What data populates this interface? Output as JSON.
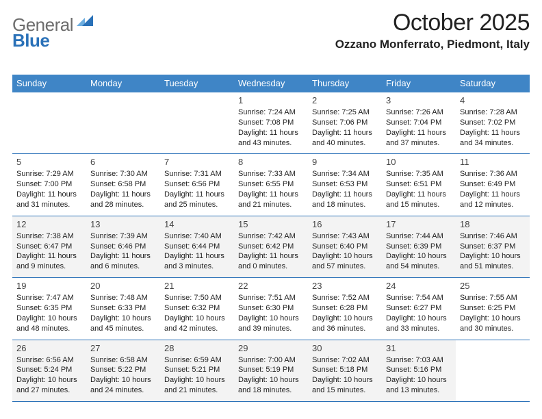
{
  "brand": {
    "gray": "General",
    "blue": "Blue"
  },
  "logo_colors": {
    "light": "#6daee0",
    "dark": "#2a71b8"
  },
  "header_color": "#3f85c6",
  "border_color": "#2a71b8",
  "title": "October 2025",
  "location": "Ozzano Monferrato, Piedmont, Italy",
  "weekdays": [
    "Sunday",
    "Monday",
    "Tuesday",
    "Wednesday",
    "Thursday",
    "Friday",
    "Saturday"
  ],
  "weeks": [
    [
      null,
      null,
      null,
      {
        "d": "1",
        "r": "7:24 AM",
        "s": "7:08 PM",
        "h": "11",
        "m": "43"
      },
      {
        "d": "2",
        "r": "7:25 AM",
        "s": "7:06 PM",
        "h": "11",
        "m": "40"
      },
      {
        "d": "3",
        "r": "7:26 AM",
        "s": "7:04 PM",
        "h": "11",
        "m": "37"
      },
      {
        "d": "4",
        "r": "7:28 AM",
        "s": "7:02 PM",
        "h": "11",
        "m": "34"
      }
    ],
    [
      {
        "d": "5",
        "r": "7:29 AM",
        "s": "7:00 PM",
        "h": "11",
        "m": "31"
      },
      {
        "d": "6",
        "r": "7:30 AM",
        "s": "6:58 PM",
        "h": "11",
        "m": "28"
      },
      {
        "d": "7",
        "r": "7:31 AM",
        "s": "6:56 PM",
        "h": "11",
        "m": "25"
      },
      {
        "d": "8",
        "r": "7:33 AM",
        "s": "6:55 PM",
        "h": "11",
        "m": "21"
      },
      {
        "d": "9",
        "r": "7:34 AM",
        "s": "6:53 PM",
        "h": "11",
        "m": "18"
      },
      {
        "d": "10",
        "r": "7:35 AM",
        "s": "6:51 PM",
        "h": "11",
        "m": "15"
      },
      {
        "d": "11",
        "r": "7:36 AM",
        "s": "6:49 PM",
        "h": "11",
        "m": "12"
      }
    ],
    [
      {
        "d": "12",
        "r": "7:38 AM",
        "s": "6:47 PM",
        "h": "11",
        "m": "9"
      },
      {
        "d": "13",
        "r": "7:39 AM",
        "s": "6:46 PM",
        "h": "11",
        "m": "6"
      },
      {
        "d": "14",
        "r": "7:40 AM",
        "s": "6:44 PM",
        "h": "11",
        "m": "3"
      },
      {
        "d": "15",
        "r": "7:42 AM",
        "s": "6:42 PM",
        "h": "11",
        "m": "0"
      },
      {
        "d": "16",
        "r": "7:43 AM",
        "s": "6:40 PM",
        "h": "10",
        "m": "57"
      },
      {
        "d": "17",
        "r": "7:44 AM",
        "s": "6:39 PM",
        "h": "10",
        "m": "54"
      },
      {
        "d": "18",
        "r": "7:46 AM",
        "s": "6:37 PM",
        "h": "10",
        "m": "51"
      }
    ],
    [
      {
        "d": "19",
        "r": "7:47 AM",
        "s": "6:35 PM",
        "h": "10",
        "m": "48"
      },
      {
        "d": "20",
        "r": "7:48 AM",
        "s": "6:33 PM",
        "h": "10",
        "m": "45"
      },
      {
        "d": "21",
        "r": "7:50 AM",
        "s": "6:32 PM",
        "h": "10",
        "m": "42"
      },
      {
        "d": "22",
        "r": "7:51 AM",
        "s": "6:30 PM",
        "h": "10",
        "m": "39"
      },
      {
        "d": "23",
        "r": "7:52 AM",
        "s": "6:28 PM",
        "h": "10",
        "m": "36"
      },
      {
        "d": "24",
        "r": "7:54 AM",
        "s": "6:27 PM",
        "h": "10",
        "m": "33"
      },
      {
        "d": "25",
        "r": "7:55 AM",
        "s": "6:25 PM",
        "h": "10",
        "m": "30"
      }
    ],
    [
      {
        "d": "26",
        "r": "6:56 AM",
        "s": "5:24 PM",
        "h": "10",
        "m": "27"
      },
      {
        "d": "27",
        "r": "6:58 AM",
        "s": "5:22 PM",
        "h": "10",
        "m": "24"
      },
      {
        "d": "28",
        "r": "6:59 AM",
        "s": "5:21 PM",
        "h": "10",
        "m": "21"
      },
      {
        "d": "29",
        "r": "7:00 AM",
        "s": "5:19 PM",
        "h": "10",
        "m": "18"
      },
      {
        "d": "30",
        "r": "7:02 AM",
        "s": "5:18 PM",
        "h": "10",
        "m": "15"
      },
      {
        "d": "31",
        "r": "7:03 AM",
        "s": "5:16 PM",
        "h": "10",
        "m": "13"
      },
      null
    ]
  ]
}
